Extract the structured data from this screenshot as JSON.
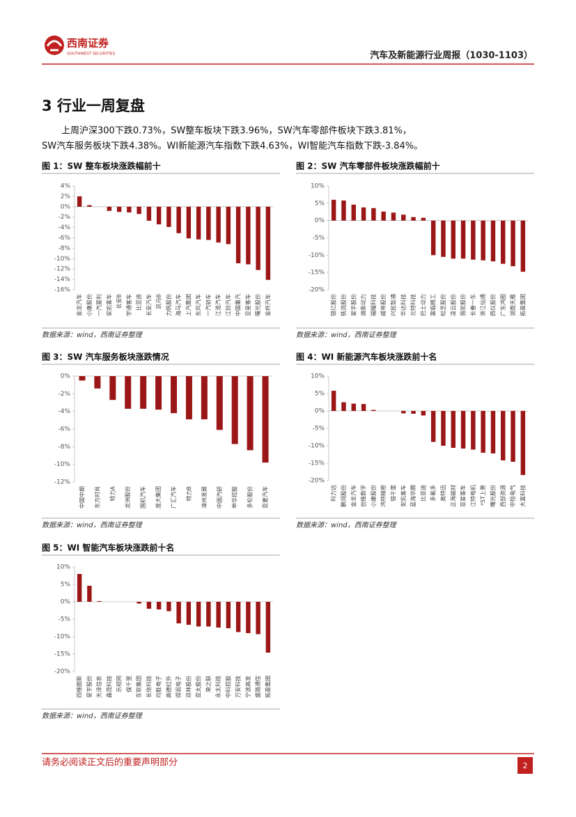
{
  "header": {
    "company": "西南证券",
    "company_en": "SOUTHWEST SECURITIES",
    "report_title": "汽车及新能源行业周报（1030-1103）"
  },
  "section": {
    "heading": "3 行业一周复盘",
    "paragraph": [
      "上周沪深300下跌0.73%，SW整车板块下跌3.96%，SW汽车零部件板块下跌3.81%，",
      "SW汽车服务板块下跌4.38%。WI新能源汽车指数下跌4.63%，WI智能汽车指数下跌-3.84%。"
    ]
  },
  "chart_data": [
    {
      "type": "bar",
      "title": "图 1：SW 整车板块涨跌幅前十",
      "source": "数据来源：wind，西南证券整理",
      "color": "#9b1616",
      "categories": [
        "金龙汽车",
        "小康股份",
        "一汽夏利",
        "安凯客车",
        "长安B",
        "宇通客车",
        "比亚迪",
        "长安汽车",
        "凯马B",
        "力帆股份",
        "海马汽车",
        "上汽集团",
        "东风汽车",
        "一汽轿车",
        "江淮汽车",
        "江铃汽车",
        "中国重汽",
        "亚星客车",
        "曙光股份",
        "金杯汽车"
      ],
      "values": [
        2.0,
        0.3,
        0,
        -0.8,
        -1.0,
        -1.1,
        -1.4,
        -2.7,
        -3.4,
        -3.9,
        -5.1,
        -6.1,
        -6.3,
        -6.4,
        -6.9,
        -7.2,
        -10.9,
        -11.1,
        -12.2,
        -14.1
      ],
      "ylim": [
        -16,
        4
      ],
      "yticks": [
        {
          "value": -16,
          "label": "-16%"
        },
        {
          "value": -14,
          "label": "-14%"
        },
        {
          "value": -12,
          "label": "-12%"
        },
        {
          "value": -10,
          "label": "-10%"
        },
        {
          "value": -8,
          "label": "-8%"
        },
        {
          "value": -6,
          "label": "-6%"
        },
        {
          "value": -4,
          "label": "-4%"
        },
        {
          "value": -2,
          "label": "-2%"
        },
        {
          "value": 0,
          "label": "0%"
        },
        {
          "value": 2,
          "label": "2%"
        },
        {
          "value": 4,
          "label": "4%"
        }
      ]
    },
    {
      "type": "bar",
      "title": "图 2：SW 汽车零部件板块涨跌幅前十",
      "source": "数据来源：wind，西南证券整理",
      "color": "#9b1616",
      "categories": [
        "银亿股份",
        "铁流股份",
        "星宇股份",
        "潍柴动力",
        "福耀科技",
        "威帝股份",
        "兴民智通",
        "华达科技",
        "北特科技",
        "巴士动力",
        "富临精工",
        "松芝股份",
        "凌云股份",
        "骆驼股份",
        "长春一东",
        "浙江仙通",
        "西仪股份",
        "广东鸿图",
        "湖南天雁",
        "拓普集团"
      ],
      "values": [
        6.0,
        5.8,
        4.6,
        3.8,
        3.6,
        2.6,
        2.3,
        1.7,
        1.0,
        0.8,
        -10.0,
        -10.5,
        -11.0,
        -11.0,
        -11.3,
        -11.5,
        -11.8,
        -12.5,
        -13.2,
        -14.8
      ],
      "ylim": [
        -20,
        10
      ],
      "yticks": [
        {
          "value": -20,
          "label": "-20%"
        },
        {
          "value": -15,
          "label": "-15%"
        },
        {
          "value": -10,
          "label": "-10%"
        },
        {
          "value": -5,
          "label": "-5%"
        },
        {
          "value": 0,
          "label": "0%"
        },
        {
          "value": 5,
          "label": "5%"
        },
        {
          "value": 10,
          "label": "10%"
        }
      ]
    },
    {
      "type": "bar",
      "title": "图 3：SW 汽车服务板块涨跌情况",
      "source": "数据来源：wind，西南证券整理",
      "color": "#9b1616",
      "categories": [
        "中国中期",
        "东方时尚",
        "特力A",
        "龙洲股份",
        "国机汽车",
        "庞大集团",
        "广汇汽车",
        "特力B",
        "漳州发展",
        "中国汽研",
        "申华控股",
        "多伦股份",
        "亚夏汽车"
      ],
      "values": [
        -0.5,
        -1.4,
        -2.7,
        -3.7,
        -3.7,
        -3.8,
        -4.2,
        -4.9,
        -4.9,
        -6.1,
        -7.7,
        -8.4,
        -9.8
      ],
      "ylim": [
        -12,
        0
      ],
      "yticks": [
        {
          "value": -12,
          "label": "-12%"
        },
        {
          "value": -10,
          "label": "-10%"
        },
        {
          "value": -8,
          "label": "-8%"
        },
        {
          "value": -6,
          "label": "-6%"
        },
        {
          "value": -4,
          "label": "-4%"
        },
        {
          "value": -2,
          "label": "-2%"
        },
        {
          "value": 0,
          "label": "0%"
        }
      ]
    },
    {
      "type": "bar",
      "title": "图 4：WI 新能源汽车板块涨跌前十名",
      "source": "数据来源：wind，西南证券整理",
      "color": "#9b1616",
      "categories": [
        "科力远",
        "鹏翎股份",
        "金龙汽车",
        "创维数字",
        "小康股份",
        "鸿特精密",
        "银千里",
        "安凯客车",
        "蓝海华腾",
        "比亚迪",
        "多氟多",
        "奥特迅",
        "正海磁材",
        "亚星客车",
        "江特电机",
        "*ST上普",
        "曙光股份",
        "西部资源",
        "中恒电气",
        "大富科技"
      ],
      "values": [
        5.8,
        2.5,
        2.1,
        2.0,
        0.3,
        0,
        0,
        -0.7,
        -0.8,
        -1.3,
        -8.9,
        -10.0,
        -10.6,
        -10.8,
        -11.1,
        -12.0,
        -12.2,
        -14.2,
        -14.6,
        -18.4
      ],
      "ylim": [
        -20,
        10
      ],
      "yticks": [
        {
          "value": -20,
          "label": "-20%"
        },
        {
          "value": -15,
          "label": "-15%"
        },
        {
          "value": -10,
          "label": "-10%"
        },
        {
          "value": -5,
          "label": "-5%"
        },
        {
          "value": 0,
          "label": "0%"
        },
        {
          "value": 5,
          "label": "5%"
        },
        {
          "value": 10,
          "label": "10%"
        }
      ]
    },
    {
      "type": "bar",
      "title": "图 5：WI 智能汽车板块涨跌前十名",
      "source": "数据来源：wind，西南证券整理",
      "color": "#9b1616",
      "categories": [
        "四维图新",
        "星宇股份",
        "天泽信息",
        "鑫茂科技",
        "乐视网",
        "保千里",
        "东软集团",
        "长信科技",
        "均胜电子",
        "高德红外",
        "得润电子",
        "双林股份",
        "亚太股份",
        "荣之联",
        "永太科技",
        "中科控股",
        "万安科技",
        "宁波高发",
        "盛路通信",
        "拓普集团"
      ],
      "values": [
        8.0,
        4.6,
        0.2,
        0,
        0,
        0,
        -0.5,
        -2.0,
        -2.2,
        -2.7,
        -6.2,
        -6.6,
        -7.1,
        -7.1,
        -7.4,
        -7.6,
        -8.7,
        -9.0,
        -9.3,
        -14.6
      ],
      "ylim": [
        -20,
        10
      ],
      "yticks": [
        {
          "value": -20,
          "label": "-20%"
        },
        {
          "value": -15,
          "label": "-15%"
        },
        {
          "value": -10,
          "label": "-10%"
        },
        {
          "value": -5,
          "label": "-5%"
        },
        {
          "value": 0,
          "label": "0%"
        },
        {
          "value": 5,
          "label": "5%"
        },
        {
          "value": 10,
          "label": "10%"
        }
      ]
    }
  ],
  "footer": {
    "disclaimer": "请务必阅读正文后的重要声明部分",
    "page": "2"
  }
}
